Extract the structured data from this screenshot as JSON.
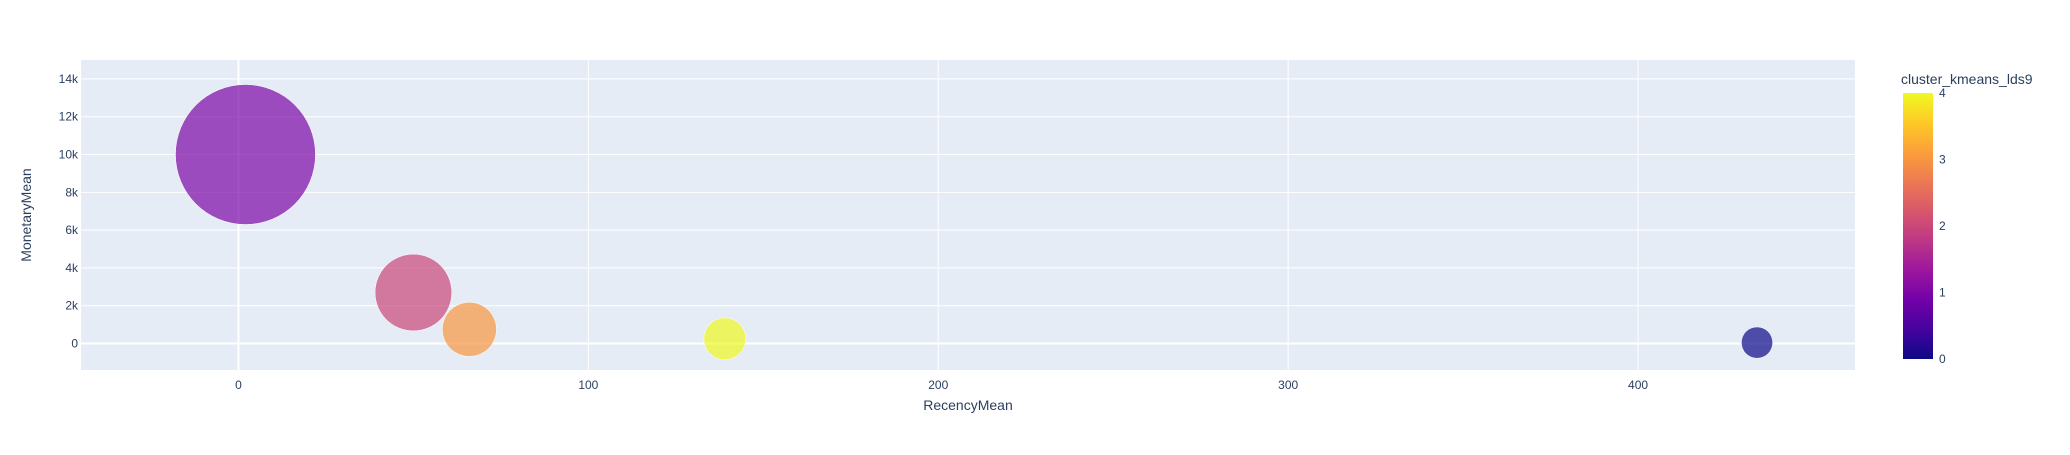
{
  "chart_data": {
    "type": "scatter",
    "title": "",
    "xlabel": "RecencyMean",
    "ylabel": "MonetaryMean",
    "xlim": [
      -45,
      462
    ],
    "ylim": [
      -1400,
      15000
    ],
    "x_ticks": [
      0,
      100,
      200,
      300,
      400
    ],
    "x_tick_labels": [
      "0",
      "100",
      "200",
      "300",
      "400"
    ],
    "y_ticks": [
      0,
      2000,
      4000,
      6000,
      8000,
      10000,
      12000,
      14000
    ],
    "y_tick_labels": [
      "0",
      "2k",
      "4k",
      "6k",
      "8k",
      "10k",
      "12k",
      "14k"
    ],
    "grid": true,
    "colorbar": {
      "title": "cluster_kmeans_lds9",
      "range": [
        0,
        4
      ],
      "ticks": [
        0,
        1,
        2,
        3,
        4
      ],
      "tick_labels": [
        "0",
        "1",
        "2",
        "3",
        "4"
      ],
      "colorscale": [
        "#0d0887",
        "#46039f",
        "#7201a8",
        "#9c179e",
        "#bd3786",
        "#d8576b",
        "#ed7953",
        "#fb9f3a",
        "#fdca26",
        "#f0f921"
      ]
    },
    "points": [
      {
        "x": 2,
        "y": 10000,
        "cluster": 1,
        "size": 100
      },
      {
        "x": 50,
        "y": 2700,
        "cluster": 2,
        "size": 30
      },
      {
        "x": 66,
        "y": 750,
        "cluster": 3,
        "size": 15
      },
      {
        "x": 139,
        "y": 250,
        "cluster": 4,
        "size": 9
      },
      {
        "x": 434,
        "y": 50,
        "cluster": 0,
        "size": 5
      }
    ]
  }
}
